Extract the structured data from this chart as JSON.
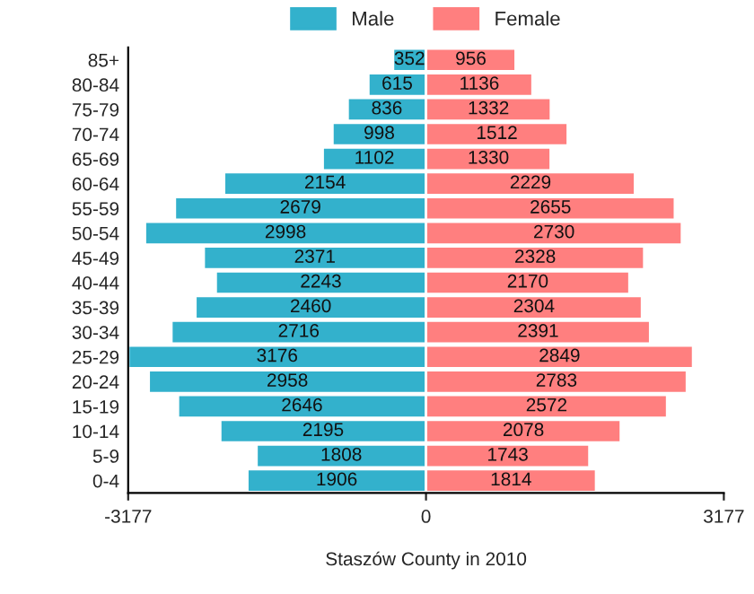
{
  "chart_data": {
    "type": "bar",
    "orientation": "horizontal",
    "xlabel": "Staszów County in 2010",
    "categories": [
      "85+",
      "80-84",
      "75-79",
      "70-74",
      "65-69",
      "60-64",
      "55-59",
      "50-54",
      "45-49",
      "40-44",
      "35-39",
      "30-34",
      "25-29",
      "20-24",
      "15-19",
      "10-14",
      "5-9",
      "0-4"
    ],
    "series": [
      {
        "name": "Male",
        "color": "#33b1cc",
        "values": [
          352,
          615,
          836,
          998,
          1102,
          2154,
          2679,
          2998,
          2371,
          2243,
          2460,
          2716,
          3176,
          2958,
          2646,
          2195,
          1808,
          1906
        ],
        "base": [
          -352,
          -615,
          -836,
          -998,
          -1102,
          -2154,
          -2679,
          -2998,
          -2371,
          -2243,
          -2460,
          -2716,
          -3176,
          -2958,
          -2646,
          -2195,
          -1808,
          -1906
        ]
      },
      {
        "name": "Female",
        "color": "#ff7f7f",
        "values": [
          956,
          1136,
          1332,
          1512,
          1330,
          2229,
          2655,
          2730,
          2328,
          2170,
          2304,
          2391,
          2849,
          2783,
          2572,
          2078,
          1743,
          1814
        ]
      }
    ],
    "data_labels": true,
    "xlim": [
      -3177,
      3177
    ],
    "xticks": [
      -3177,
      0,
      3177
    ],
    "legend": "top"
  }
}
